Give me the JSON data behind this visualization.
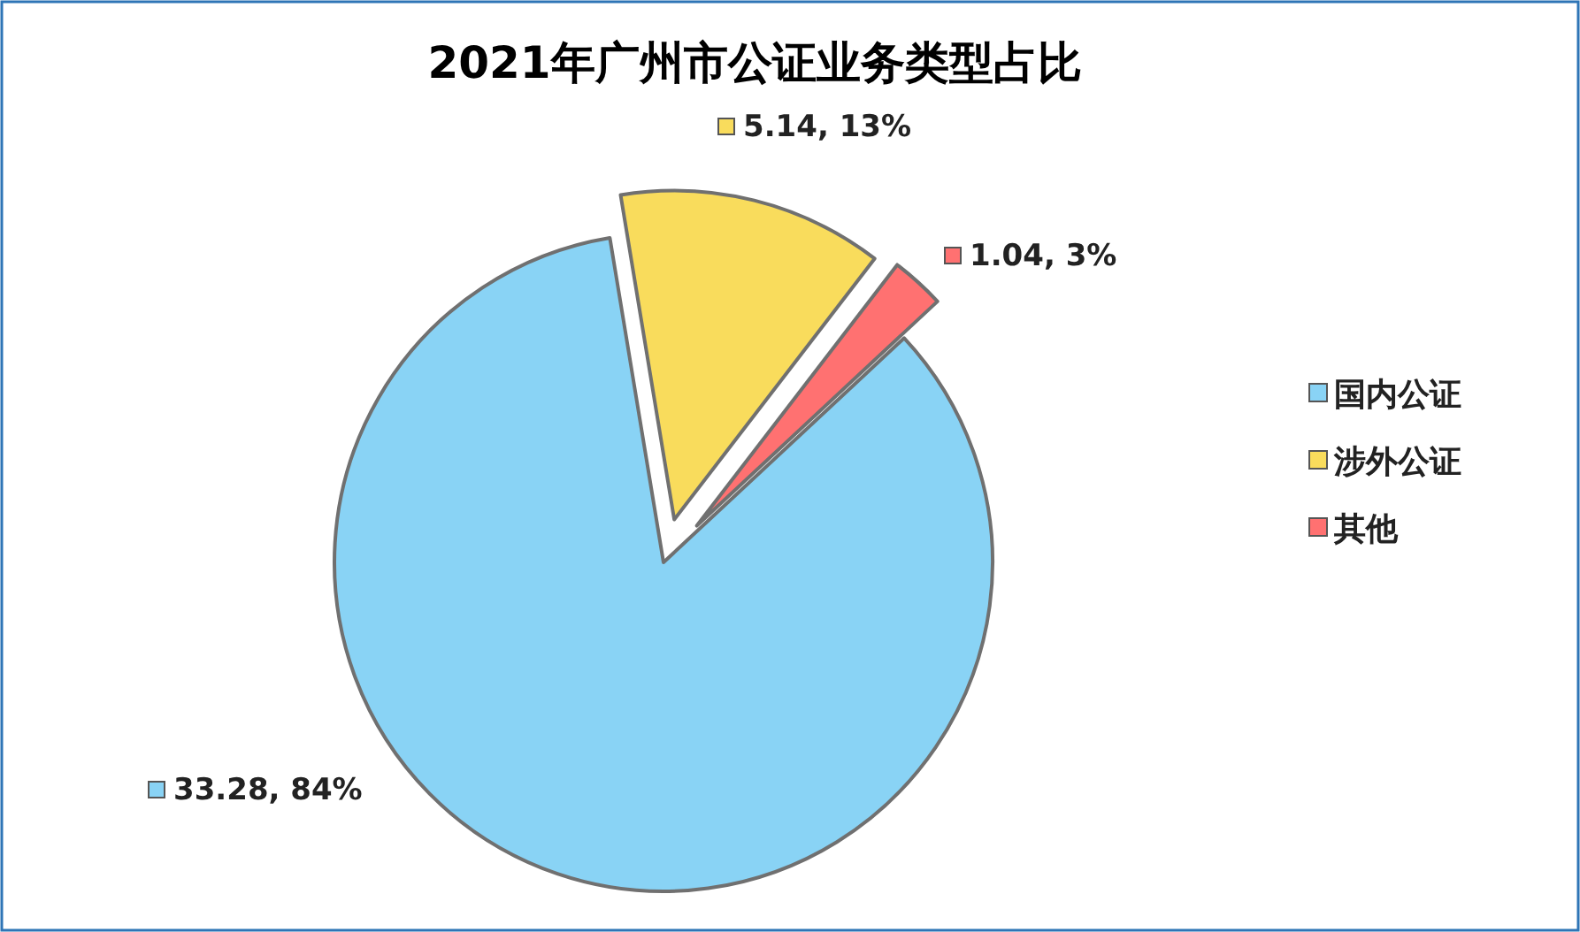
{
  "chart_data": {
    "type": "pie",
    "title": "2021年广州市公证业务类型占比",
    "categories": [
      "国内公证",
      "涉外公证",
      "其他"
    ],
    "values": [
      33.28,
      5.14,
      1.04
    ],
    "colors": [
      "#89d3f5",
      "#f9dc5c",
      "#ff7171"
    ],
    "value_labels": [
      "33.28, 84%",
      "5.14, 13%",
      "1.04, 3%"
    ],
    "legend": "right"
  }
}
